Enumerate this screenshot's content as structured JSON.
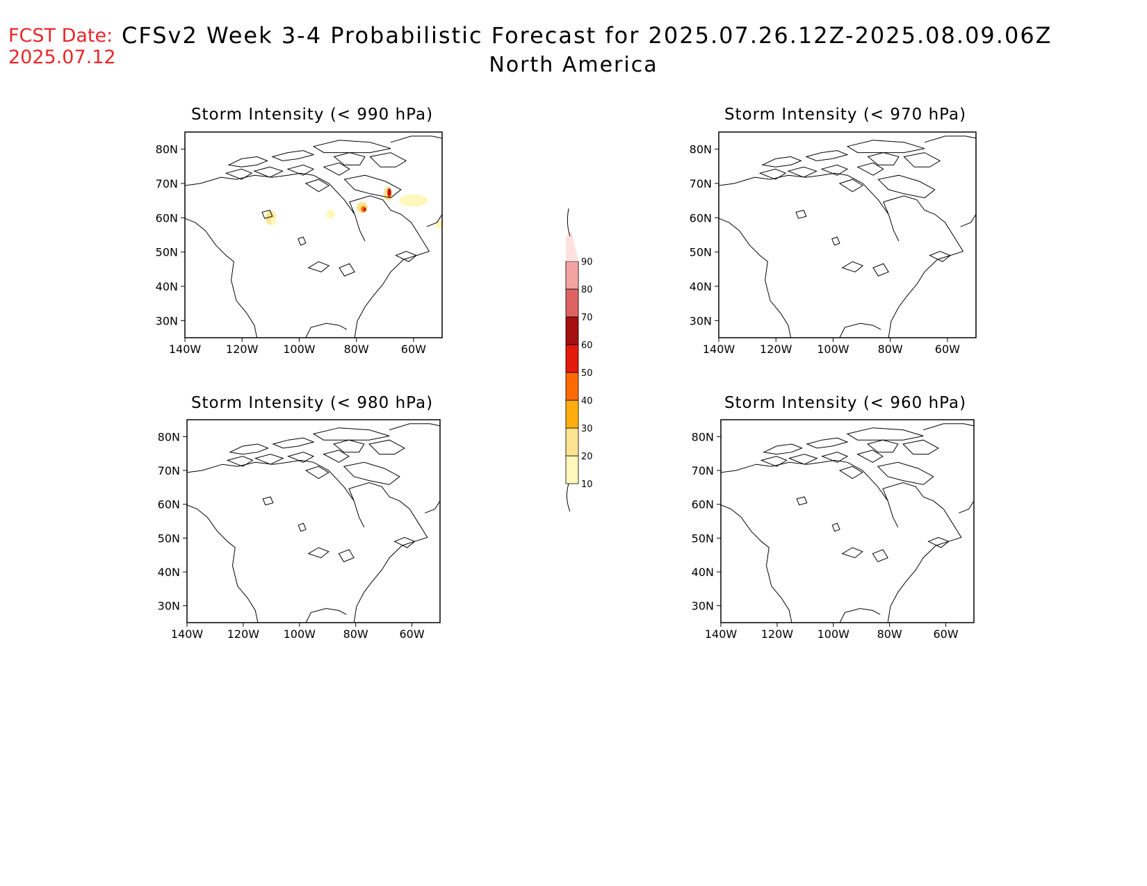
{
  "header": {
    "fcst_label": "FCST Date:",
    "fcst_date": "2025.07.12",
    "title": "CFSv2 Week 3-4 Probabilistic Forecast for 2025.07.26.12Z-2025.08.09.06Z",
    "subtitle": "North America"
  },
  "colors": {
    "land_line": "#000000",
    "scale": [
      "#fff7bc",
      "#fee391",
      "#fdae0e",
      "#fc6a03",
      "#e31a0c",
      "#a50f0f",
      "#de6464",
      "#f4a3a3",
      "#fde0e0"
    ]
  },
  "colorbar": {
    "levels": [
      10,
      20,
      30,
      40,
      50,
      60,
      70,
      80,
      90
    ],
    "labels": [
      "10",
      "20",
      "30",
      "40",
      "50",
      "60",
      "70",
      "80",
      "90"
    ]
  },
  "chart_data": {
    "type": "heatmap",
    "axes": {
      "lon_ticks": [
        "140W",
        "120W",
        "100W",
        "80W",
        "60W"
      ],
      "lat_ticks": [
        "30N",
        "40N",
        "50N",
        "60N",
        "70N",
        "80N"
      ],
      "lon_range": [
        -140,
        -50
      ],
      "lat_range": [
        25,
        85
      ]
    },
    "panels": [
      {
        "title": "Storm Intensity (< 990 hPa)",
        "areas": [
          {
            "lon": -110,
            "lat": 60,
            "rx": 1.8,
            "ry": 2.0,
            "level": 20
          },
          {
            "lon": -109,
            "lat": 59,
            "rx": 1.0,
            "ry": 1.2,
            "level": 10
          },
          {
            "lon": -89,
            "lat": 61,
            "rx": 1.5,
            "ry": 1.3,
            "level": 10
          },
          {
            "lon": -78,
            "lat": 63,
            "rx": 2.0,
            "ry": 1.6,
            "level": 20
          },
          {
            "lon": -77.5,
            "lat": 62.5,
            "rx": 0.9,
            "ry": 0.9,
            "level": 40
          },
          {
            "lon": -77,
            "lat": 62.4,
            "rx": 0.4,
            "ry": 0.5,
            "level": 60
          },
          {
            "lon": -69,
            "lat": 67,
            "rx": 1.5,
            "ry": 2.0,
            "level": 20
          },
          {
            "lon": -68.5,
            "lat": 67.3,
            "rx": 0.7,
            "ry": 1.3,
            "level": 50
          },
          {
            "lon": -68.3,
            "lat": 67.5,
            "rx": 0.3,
            "ry": 0.8,
            "level": 60
          },
          {
            "lon": -60,
            "lat": 65,
            "rx": 5.0,
            "ry": 1.8,
            "level": 10
          },
          {
            "lon": -51,
            "lat": 58,
            "rx": 1.5,
            "ry": 1.2,
            "level": 10
          }
        ]
      },
      {
        "title": "Storm Intensity (< 970 hPa)",
        "areas": []
      },
      {
        "title": "Storm Intensity (< 980 hPa)",
        "areas": []
      },
      {
        "title": "Storm Intensity (< 960 hPa)",
        "areas": []
      }
    ]
  }
}
